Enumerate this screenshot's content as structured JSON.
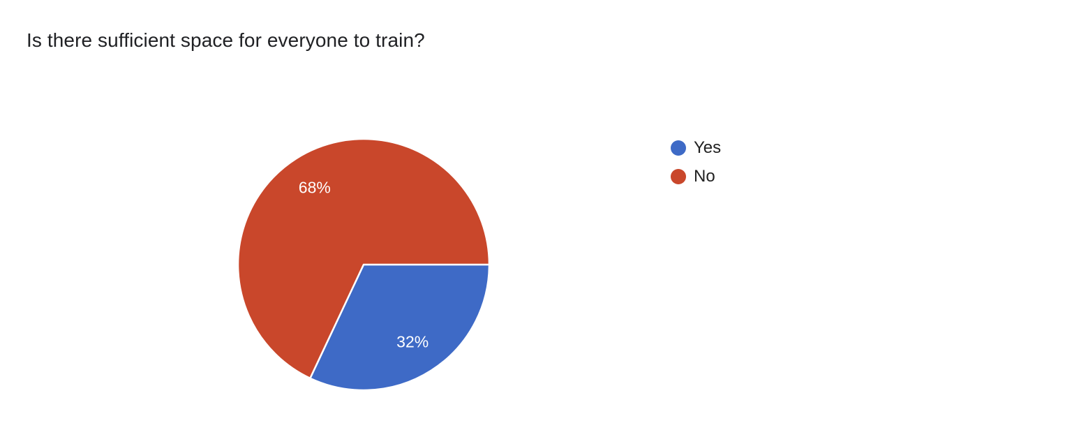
{
  "question": {
    "title": "Is there sufficient space for everyone to train?"
  },
  "chart_data": {
    "type": "pie",
    "title": "Is there sufficient space for everyone to train?",
    "categories": [
      "Yes",
      "No"
    ],
    "values": [
      32,
      68
    ],
    "data_labels": [
      "32%",
      "68%"
    ],
    "colors": [
      "#3E6AC6",
      "#C9472B"
    ],
    "slice_divider_color": "#FFFFFF",
    "data_label_color": "#FFFFFF",
    "start_angle_deg": 0,
    "direction": "clockwise",
    "legend_position": "right",
    "legend": [
      {
        "label": "Yes",
        "color": "#3E6AC6"
      },
      {
        "label": "No",
        "color": "#C9472B"
      }
    ]
  }
}
